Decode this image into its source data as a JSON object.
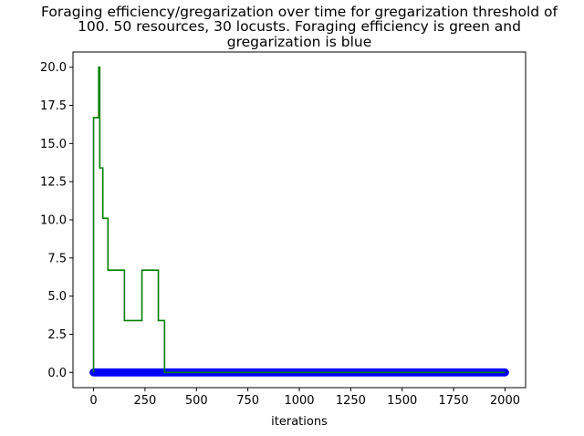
{
  "chart_data": {
    "type": "line",
    "title_lines": [
      "Foraging efficiency/gregarization over time for gregarization threshold of",
      "100. 50 resources, 30 locusts. Foraging efficiency is green and",
      "gregarization is blue"
    ],
    "xlabel": "iterations",
    "ylabel": "",
    "xlim": [
      -100,
      2100
    ],
    "ylim": [
      -1.0,
      21.0
    ],
    "x_ticks": [
      0,
      250,
      500,
      750,
      1000,
      1250,
      1500,
      1750,
      2000
    ],
    "x_tick_labels": [
      "0",
      "250",
      "500",
      "750",
      "1000",
      "1250",
      "1500",
      "1750",
      "2000"
    ],
    "y_ticks": [
      0.0,
      2.5,
      5.0,
      7.5,
      10.0,
      12.5,
      15.0,
      17.5,
      20.0
    ],
    "y_tick_labels": [
      "0.0",
      "2.5",
      "5.0",
      "7.5",
      "10.0",
      "12.5",
      "15.0",
      "17.5",
      "20.0"
    ],
    "grid": false,
    "series": [
      {
        "color": "#008000",
        "style": "step-line",
        "x": [
          0,
          0,
          25,
          25,
          30,
          30,
          45,
          45,
          70,
          70,
          150,
          150,
          235,
          235,
          315,
          315,
          345,
          345,
          2000
        ],
        "y": [
          0.0,
          16.7,
          16.7,
          20.0,
          20.0,
          13.4,
          13.4,
          10.1,
          10.1,
          6.7,
          6.7,
          3.4,
          3.4,
          6.7,
          6.7,
          3.4,
          3.4,
          0.0,
          0.0
        ]
      },
      {
        "color": "#0000ff",
        "style": "markers",
        "x_start": 0,
        "x_end": 2000,
        "y": 0.0
      }
    ]
  }
}
